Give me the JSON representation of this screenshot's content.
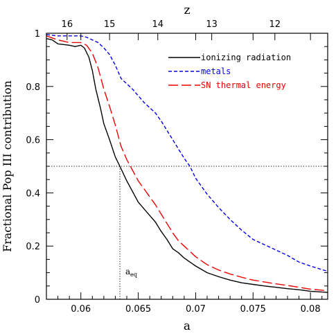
{
  "chart_data": {
    "type": "line",
    "xlabel": "a",
    "ylabel": "Fractional Pop III contribution",
    "top_axis_label": "z",
    "xlim": [
      0.057,
      0.0815
    ],
    "ylim": [
      0,
      1
    ],
    "x_ticks": [
      "0.06",
      "0.065",
      "0.07",
      "0.075",
      "0.08"
    ],
    "y_ticks": [
      "0",
      "0.2",
      "0.4",
      "0.6",
      "0.8",
      "1"
    ],
    "z_ticks": [
      "16",
      "15",
      "14",
      "13",
      "12"
    ],
    "z_tick_positions_a": [
      0.0588,
      0.0625,
      0.0667,
      0.0714,
      0.0769
    ],
    "grid": false,
    "legend_position": "top-right",
    "annotation": {
      "text": "a",
      "subscript": "eq",
      "x": 0.0634
    },
    "reference_lines": {
      "horizontal_y": 0.5,
      "vertical_x": 0.0634
    },
    "series": [
      {
        "name": "ionizing radiation",
        "color": "#000000",
        "dash": "solid",
        "points": [
          [
            0.057,
            0.98
          ],
          [
            0.0575,
            0.975
          ],
          [
            0.058,
            0.96
          ],
          [
            0.059,
            0.955
          ],
          [
            0.0595,
            0.95
          ],
          [
            0.06,
            0.955
          ],
          [
            0.0603,
            0.945
          ],
          [
            0.0607,
            0.91
          ],
          [
            0.061,
            0.86
          ],
          [
            0.0613,
            0.79
          ],
          [
            0.0617,
            0.72
          ],
          [
            0.062,
            0.66
          ],
          [
            0.0625,
            0.6
          ],
          [
            0.063,
            0.535
          ],
          [
            0.0634,
            0.5
          ],
          [
            0.064,
            0.445
          ],
          [
            0.0645,
            0.405
          ],
          [
            0.065,
            0.365
          ],
          [
            0.0655,
            0.34
          ],
          [
            0.066,
            0.315
          ],
          [
            0.0665,
            0.29
          ],
          [
            0.067,
            0.255
          ],
          [
            0.0675,
            0.225
          ],
          [
            0.068,
            0.19
          ],
          [
            0.0685,
            0.175
          ],
          [
            0.069,
            0.155
          ],
          [
            0.07,
            0.125
          ],
          [
            0.071,
            0.1
          ],
          [
            0.072,
            0.085
          ],
          [
            0.073,
            0.072
          ],
          [
            0.074,
            0.062
          ],
          [
            0.075,
            0.056
          ],
          [
            0.076,
            0.05
          ],
          [
            0.077,
            0.045
          ],
          [
            0.078,
            0.04
          ],
          [
            0.079,
            0.036
          ],
          [
            0.08,
            0.03
          ],
          [
            0.0815,
            0.026
          ]
        ]
      },
      {
        "name": "metals",
        "color": "#0000ee",
        "dash": "short",
        "points": [
          [
            0.057,
            0.995
          ],
          [
            0.058,
            0.99
          ],
          [
            0.059,
            0.99
          ],
          [
            0.06,
            0.99
          ],
          [
            0.0605,
            0.985
          ],
          [
            0.061,
            0.975
          ],
          [
            0.0615,
            0.965
          ],
          [
            0.062,
            0.945
          ],
          [
            0.0625,
            0.92
          ],
          [
            0.063,
            0.88
          ],
          [
            0.0635,
            0.83
          ],
          [
            0.064,
            0.81
          ],
          [
            0.0645,
            0.79
          ],
          [
            0.065,
            0.765
          ],
          [
            0.0655,
            0.74
          ],
          [
            0.066,
            0.72
          ],
          [
            0.0665,
            0.7
          ],
          [
            0.067,
            0.67
          ],
          [
            0.0675,
            0.635
          ],
          [
            0.068,
            0.6
          ],
          [
            0.0685,
            0.565
          ],
          [
            0.069,
            0.53
          ],
          [
            0.0695,
            0.5
          ],
          [
            0.07,
            0.455
          ],
          [
            0.071,
            0.395
          ],
          [
            0.072,
            0.345
          ],
          [
            0.073,
            0.3
          ],
          [
            0.074,
            0.26
          ],
          [
            0.075,
            0.225
          ],
          [
            0.076,
            0.205
          ],
          [
            0.077,
            0.185
          ],
          [
            0.078,
            0.165
          ],
          [
            0.079,
            0.14
          ],
          [
            0.08,
            0.125
          ],
          [
            0.0815,
            0.105
          ]
        ]
      },
      {
        "name": "SN thermal energy",
        "color": "#ee0000",
        "dash": "long",
        "points": [
          [
            0.057,
            0.99
          ],
          [
            0.058,
            0.975
          ],
          [
            0.059,
            0.965
          ],
          [
            0.06,
            0.965
          ],
          [
            0.0605,
            0.955
          ],
          [
            0.061,
            0.925
          ],
          [
            0.0615,
            0.87
          ],
          [
            0.062,
            0.79
          ],
          [
            0.0625,
            0.725
          ],
          [
            0.063,
            0.655
          ],
          [
            0.0635,
            0.575
          ],
          [
            0.064,
            0.525
          ],
          [
            0.0645,
            0.485
          ],
          [
            0.065,
            0.445
          ],
          [
            0.0655,
            0.415
          ],
          [
            0.066,
            0.385
          ],
          [
            0.0665,
            0.355
          ],
          [
            0.067,
            0.32
          ],
          [
            0.0675,
            0.285
          ],
          [
            0.068,
            0.25
          ],
          [
            0.0685,
            0.22
          ],
          [
            0.069,
            0.2
          ],
          [
            0.07,
            0.16
          ],
          [
            0.071,
            0.13
          ],
          [
            0.072,
            0.11
          ],
          [
            0.073,
            0.095
          ],
          [
            0.074,
            0.083
          ],
          [
            0.075,
            0.072
          ],
          [
            0.076,
            0.065
          ],
          [
            0.077,
            0.058
          ],
          [
            0.078,
            0.052
          ],
          [
            0.079,
            0.045
          ],
          [
            0.08,
            0.038
          ],
          [
            0.0815,
            0.032
          ]
        ]
      }
    ]
  }
}
